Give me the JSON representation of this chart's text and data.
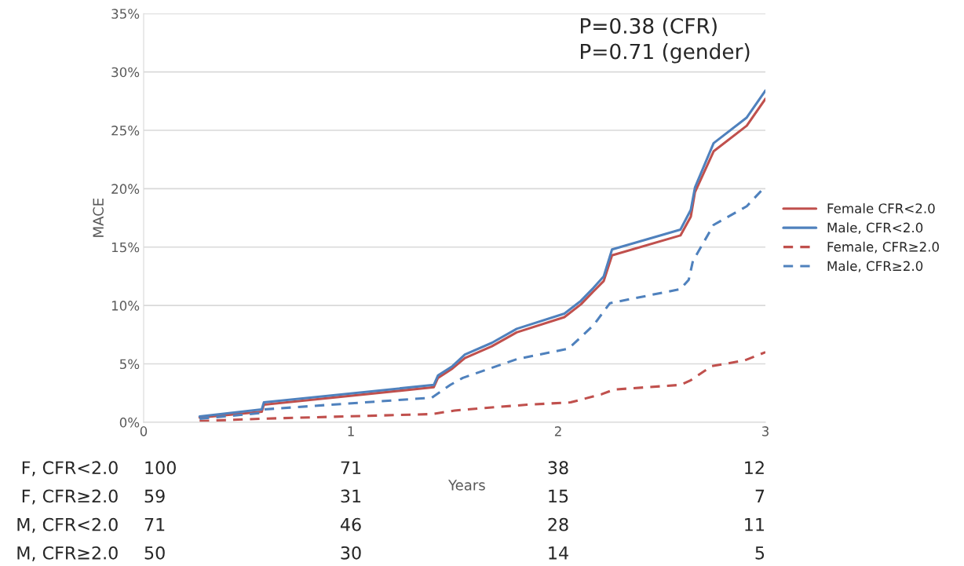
{
  "chart_data": {
    "type": "line",
    "xlabel": "Years",
    "ylabel": "MACE",
    "xlim": [
      0,
      3
    ],
    "xticks": [
      0,
      1,
      2,
      3
    ],
    "ylim": [
      0,
      35
    ],
    "yticks": [
      {
        "value": 0,
        "label": "0%"
      },
      {
        "value": 5,
        "label": "5%"
      },
      {
        "value": 10,
        "label": "10%"
      },
      {
        "value": 15,
        "label": "15%"
      },
      {
        "value": 20,
        "label": "20%"
      },
      {
        "value": 25,
        "label": "25%"
      },
      {
        "value": 30,
        "label": "30%"
      },
      {
        "value": 35,
        "label": "35%"
      }
    ],
    "grid": "y",
    "legend": "right",
    "marker": "none",
    "series": [
      {
        "name": "Female CFR<2.0",
        "color": "#c0504d",
        "line_style": "solid",
        "x": [
          0.27,
          0.57,
          0.58,
          1.4,
          1.42,
          1.49,
          1.55,
          1.68,
          1.8,
          2.03,
          2.11,
          2.17,
          2.22,
          2.26,
          2.59,
          2.64,
          2.66,
          2.75,
          2.91,
          3.0
        ],
        "values": [
          0.4,
          0.9,
          1.5,
          3.0,
          3.8,
          4.6,
          5.5,
          6.5,
          7.7,
          9.0,
          10.1,
          11.2,
          12.1,
          14.3,
          16.0,
          17.6,
          19.7,
          23.2,
          25.4,
          27.7
        ]
      },
      {
        "name": "Male, CFR<2.0",
        "color": "#4f81bd",
        "line_style": "solid",
        "x": [
          0.27,
          0.57,
          0.58,
          1.4,
          1.42,
          1.49,
          1.55,
          1.68,
          1.8,
          2.03,
          2.11,
          2.17,
          2.22,
          2.26,
          2.59,
          2.64,
          2.66,
          2.75,
          2.91,
          3.0
        ],
        "values": [
          0.5,
          1.1,
          1.7,
          3.2,
          4.0,
          4.8,
          5.8,
          6.8,
          8.0,
          9.3,
          10.4,
          11.5,
          12.5,
          14.8,
          16.5,
          18.2,
          20.1,
          23.9,
          26.1,
          28.4
        ]
      },
      {
        "name": "Female, CFR≥2.0",
        "color": "#c0504d",
        "line_style": "dashed",
        "x": [
          0.27,
          0.57,
          1.39,
          1.5,
          1.7,
          1.85,
          2.06,
          2.21,
          2.27,
          2.59,
          2.64,
          2.74,
          2.9,
          3.0
        ],
        "values": [
          0.1,
          0.3,
          0.7,
          1.0,
          1.3,
          1.5,
          1.7,
          2.4,
          2.8,
          3.2,
          3.6,
          4.8,
          5.3,
          6.0
        ]
      },
      {
        "name": "Male, CFR≥2.0",
        "color": "#4f81bd",
        "line_style": "dashed",
        "x": [
          0.27,
          0.57,
          0.58,
          1.39,
          1.48,
          1.54,
          1.8,
          2.05,
          2.17,
          2.25,
          2.59,
          2.63,
          2.65,
          2.75,
          2.91,
          3.0
        ],
        "values": [
          0.3,
          0.8,
          1.1,
          2.1,
          3.2,
          3.8,
          5.4,
          6.3,
          8.3,
          10.2,
          11.4,
          12.2,
          13.8,
          16.9,
          18.5,
          20.2
        ]
      }
    ],
    "annotations": [
      "P=0.38 (CFR)\nP=0.71 (gender)",
      "F, CFR<2.0",
      "100",
      "71",
      "38",
      "12",
      "F, CFR≥2.0",
      "59",
      "31",
      "15",
      "7",
      "M, CFR<2.0",
      "71",
      "46",
      "28",
      "11",
      "M, CFR≥2.0",
      "50",
      "30",
      "14",
      "5"
    ]
  }
}
